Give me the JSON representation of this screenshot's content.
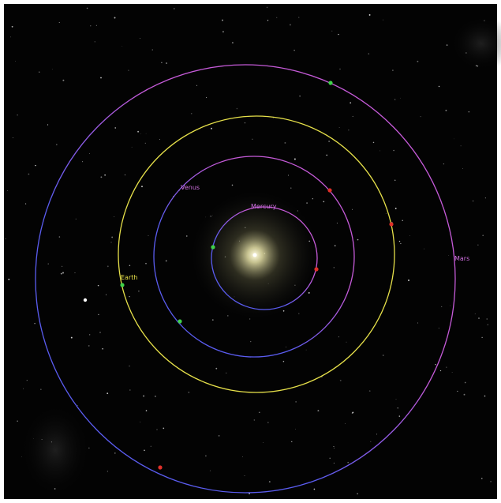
{
  "planets": [
    {
      "label": "Mercury"
    },
    {
      "label": "Venus"
    },
    {
      "label": "Earth"
    },
    {
      "label": "Mars"
    }
  ]
}
